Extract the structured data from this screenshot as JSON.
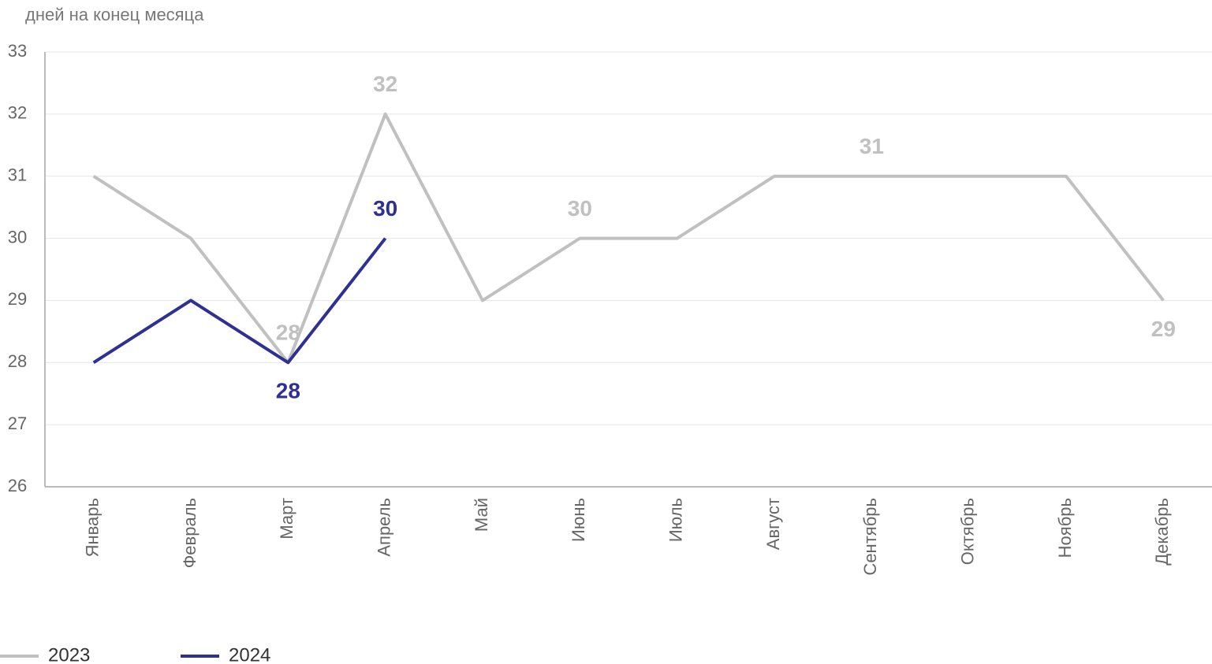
{
  "chart_data": {
    "type": "line",
    "subtitle": "дней на конец месяца",
    "categories": [
      "Январь",
      "Февраль",
      "Март",
      "Апрель",
      "Май",
      "Июнь",
      "Июль",
      "Август",
      "Сентябрь",
      "Октябрь",
      "Ноябрь",
      "Декабрь"
    ],
    "series": [
      {
        "name": "2023",
        "color": "#c0c0c0",
        "values": [
          31,
          30,
          28,
          32,
          29,
          30,
          30,
          31,
          31,
          31,
          31,
          29
        ],
        "value_labels": [
          null,
          null,
          "28",
          "32",
          null,
          "30",
          null,
          null,
          "31",
          null,
          null,
          "29"
        ]
      },
      {
        "name": "2024",
        "color": "#2e3192",
        "values": [
          28,
          29,
          28,
          30,
          null,
          null,
          null,
          null,
          null,
          null,
          null,
          null
        ],
        "value_labels": [
          null,
          null,
          "28",
          "30",
          null,
          null,
          null,
          null,
          null,
          null,
          null,
          null
        ]
      }
    ],
    "ylim": [
      26,
      33
    ],
    "yticks": [
      26,
      27,
      28,
      29,
      30,
      31,
      32,
      33
    ],
    "grid": true,
    "legend": "bottom"
  }
}
